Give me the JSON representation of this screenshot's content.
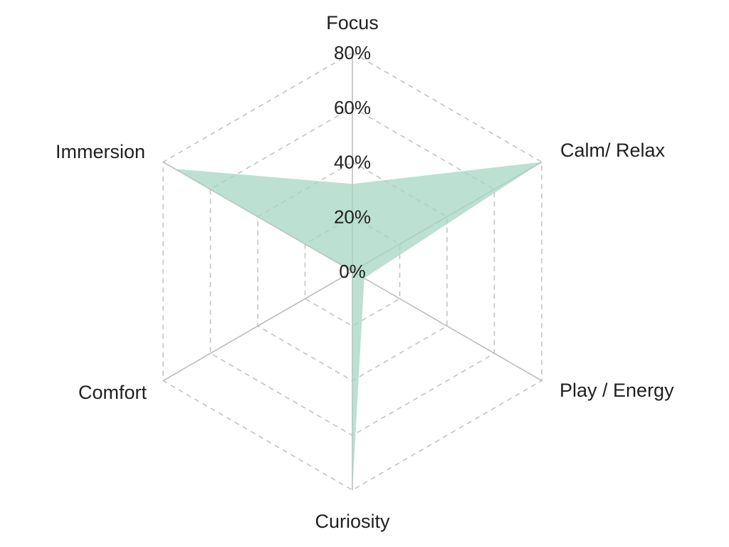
{
  "chart_data": {
    "type": "radar",
    "axes": [
      "Focus",
      "Calm/ Relax",
      "Play / Energy",
      "Curiosity",
      "Comfort",
      "Immersion"
    ],
    "series": [
      {
        "values": [
          32,
          80,
          5,
          80,
          0,
          75
        ]
      }
    ],
    "rlim": [
      0,
      80
    ],
    "ticks": [
      0,
      20,
      40,
      60,
      80
    ],
    "tick_labels": [
      "0%",
      "20%",
      "40%",
      "60%",
      "80%"
    ],
    "grid": true,
    "grid_style": "dashed",
    "fill_color": "#a6d5c3",
    "fill_opacity": 0.75,
    "grid_color": "#c4c4c4",
    "text_color": "#1f1f1f"
  }
}
